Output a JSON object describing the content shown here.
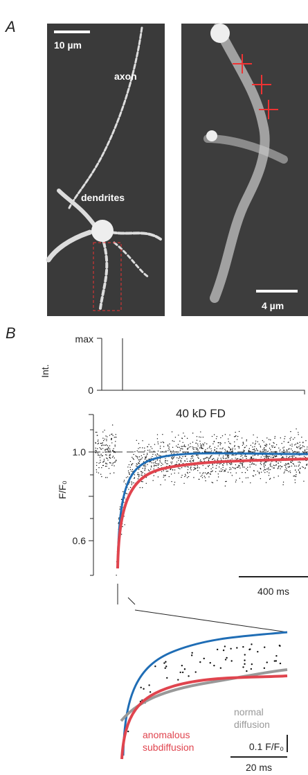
{
  "panel_a": {
    "label": "A",
    "left_image": {
      "scale_bar": "10 µm",
      "labels": [
        "axon",
        "dendrites"
      ]
    },
    "right_image": {
      "scale_bar": "4 µm"
    }
  },
  "panel_b": {
    "label": "B",
    "intensity": {
      "axis_label": "Int.",
      "ticks": [
        "max",
        "0"
      ]
    },
    "main_plot": {
      "title": "40 kD FD",
      "y_label": "F/F₀",
      "y_ticks": [
        "1.0",
        "0.6"
      ],
      "time_scale_bar": "400 ms"
    },
    "inset": {
      "labels": [
        "normal diffusion",
        "anomalous subdiffusion"
      ],
      "y_scale_bar": "0.1 F/F₀",
      "x_scale_bar": "20 ms"
    }
  }
}
